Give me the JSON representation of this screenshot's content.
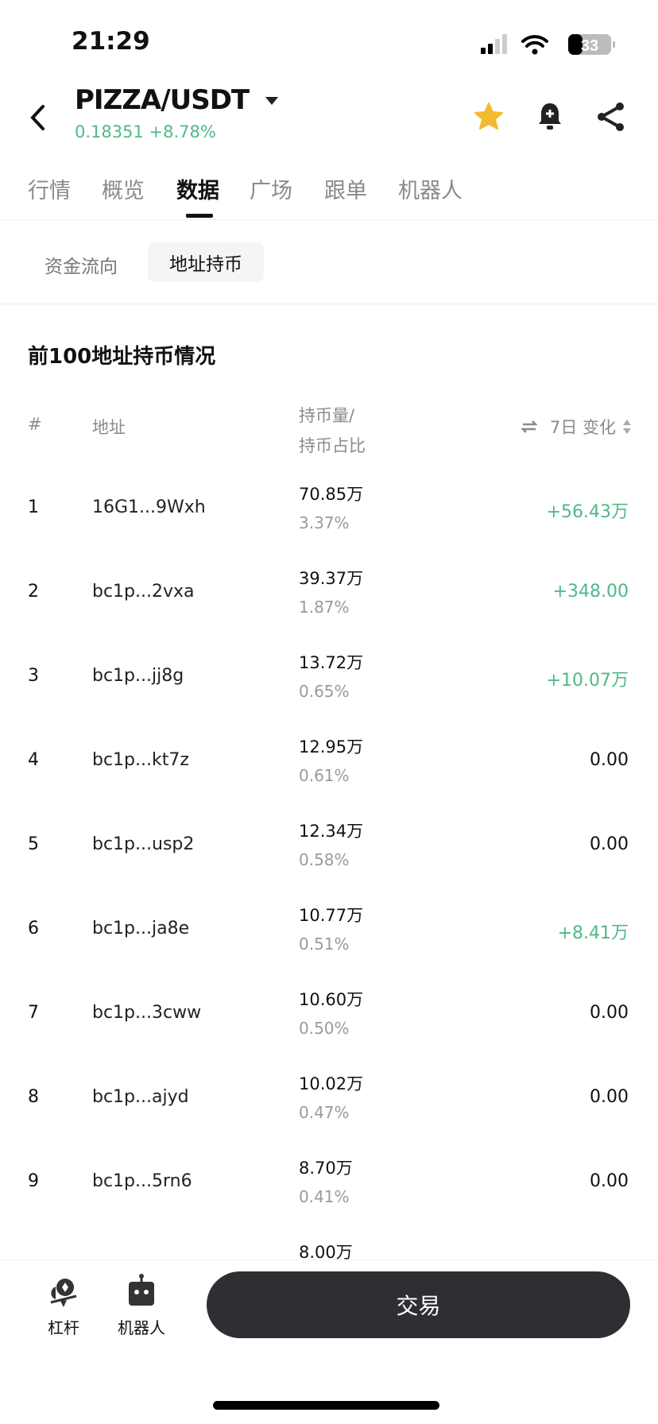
{
  "status": {
    "time": "21:29",
    "battery": "33"
  },
  "header": {
    "title": "PIZZA/USDT",
    "price": "0.18351",
    "change": "+8.78%",
    "icons": [
      "back-icon",
      "dropdown-icon",
      "star-icon",
      "bell-plus-icon",
      "share-icon"
    ]
  },
  "colors": {
    "up": "#4fb987",
    "star": "#f3ba2f",
    "button": "#2e2f33"
  },
  "tabs": [
    "行情",
    "概览",
    "数据",
    "广场",
    "跟单",
    "机器人"
  ],
  "active_tab": "数据",
  "subtabs": [
    "资金流向",
    "地址持币"
  ],
  "section_title": "前100地址持币情况",
  "table": {
    "headers": {
      "index": "#",
      "address": "地址",
      "amount_line1": "持币量/",
      "amount_line2": "持币占比",
      "change": "7日 变化"
    },
    "rows": [
      {
        "n": "1",
        "addr": "16G1...9Wxh",
        "amt": "70.85万",
        "pct": "3.37%",
        "chg": "+56.43万",
        "up": true
      },
      {
        "n": "2",
        "addr": "bc1p...2vxa",
        "amt": "39.37万",
        "pct": "1.87%",
        "chg": "+348.00",
        "up": true
      },
      {
        "n": "3",
        "addr": "bc1p...jj8g",
        "amt": "13.72万",
        "pct": "0.65%",
        "chg": "+10.07万",
        "up": true
      },
      {
        "n": "4",
        "addr": "bc1p...kt7z",
        "amt": "12.95万",
        "pct": "0.61%",
        "chg": "0.00",
        "up": false
      },
      {
        "n": "5",
        "addr": "bc1p...usp2",
        "amt": "12.34万",
        "pct": "0.58%",
        "chg": "0.00",
        "up": false
      },
      {
        "n": "6",
        "addr": "bc1p...ja8e",
        "amt": "10.77万",
        "pct": "0.51%",
        "chg": "+8.41万",
        "up": true
      },
      {
        "n": "7",
        "addr": "bc1p...3cww",
        "amt": "10.60万",
        "pct": "0.50%",
        "chg": "0.00",
        "up": false
      },
      {
        "n": "8",
        "addr": "bc1p...ajyd",
        "amt": "10.02万",
        "pct": "0.47%",
        "chg": "0.00",
        "up": false
      },
      {
        "n": "9",
        "addr": "bc1p...5rn6",
        "amt": "8.70万",
        "pct": "0.41%",
        "chg": "0.00",
        "up": false
      }
    ],
    "partial_row_amount": "8.00万"
  },
  "bottom": {
    "leverage": "杠杆",
    "robot": "机器人",
    "trade": "交易"
  }
}
